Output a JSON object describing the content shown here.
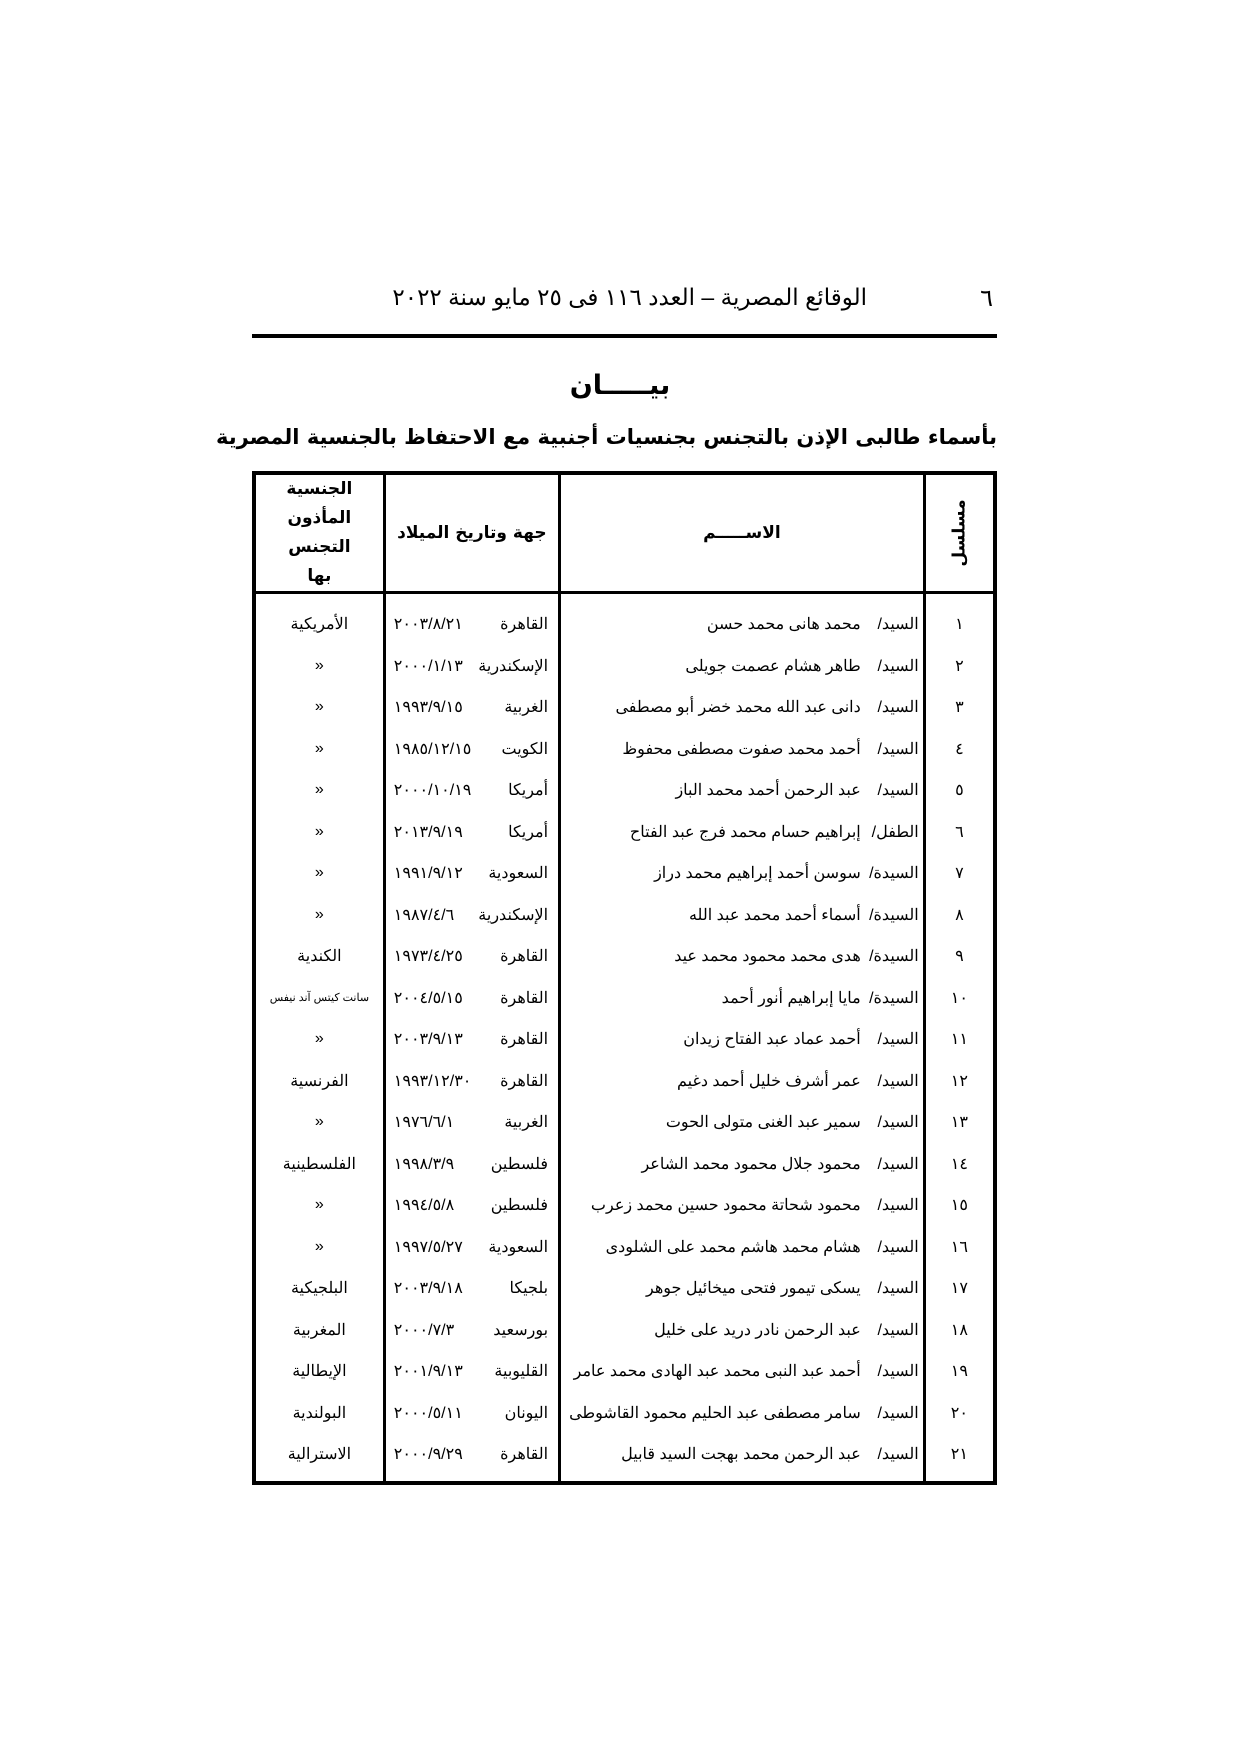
{
  "header": {
    "page_number": "٦",
    "running_title": "الوقائع المصرية – العدد ١١٦ فى ٢٥ مايو سنة ٢٠٢٢"
  },
  "document": {
    "title": "بيـــــان",
    "subtitle": "بأسماء طالبى الإذن بالتجنس بجنسيات أجنبية مع الاحتفاظ بالجنسية المصرية"
  },
  "table": {
    "headers": {
      "serial": "مسلسل",
      "name": "الاســـــم",
      "birth": "جهة وتاريخ الميلاد",
      "nationality": "الجنسية المأذون التجنس بها"
    },
    "rows": [
      {
        "serial": "١",
        "honorific": "السيد/",
        "name": "محمد هانى محمد حسن",
        "place": "القاهرة",
        "date": "٢٠٠٣/٨/٢١",
        "nationality": "الأمريكية"
      },
      {
        "serial": "٢",
        "honorific": "السيد/",
        "name": "طاهر هشام عصمت جويلى",
        "place": "الإسكندرية",
        "date": "٢٠٠٠/١/١٣",
        "nationality": "«"
      },
      {
        "serial": "٣",
        "honorific": "السيد/",
        "name": "دانى عبد الله محمد خضر أبو مصطفى",
        "place": "الغربية",
        "date": "١٩٩٣/٩/١٥",
        "nationality": "«"
      },
      {
        "serial": "٤",
        "honorific": "السيد/",
        "name": "أحمد محمد صفوت مصطفى محفوظ",
        "place": "الكويت",
        "date": "١٩٨٥/١٢/١٥",
        "nationality": "«"
      },
      {
        "serial": "٥",
        "honorific": "السيد/",
        "name": "عبد الرحمن أحمد محمد الباز",
        "place": "أمريكا",
        "date": "٢٠٠٠/١٠/١٩",
        "nationality": "«"
      },
      {
        "serial": "٦",
        "honorific": "الطفل/",
        "name": "إبراهيم حسام محمد فرج عبد الفتاح",
        "place": "أمريكا",
        "date": "٢٠١٣/٩/١٩",
        "nationality": "«"
      },
      {
        "serial": "٧",
        "honorific": "السيدة/",
        "name": "سوسن أحمد إبراهيم محمد دراز",
        "place": "السعودية",
        "date": "١٩٩١/٩/١٢",
        "nationality": "«"
      },
      {
        "serial": "٨",
        "honorific": "السيدة/",
        "name": "أسماء أحمد محمد عبد الله",
        "place": "الإسكندرية",
        "date": "١٩٨٧/٤/٦",
        "nationality": "«"
      },
      {
        "serial": "٩",
        "honorific": "السيدة/",
        "name": "هدى محمد محمود محمد عيد",
        "place": "القاهرة",
        "date": "١٩٧٣/٤/٢٥",
        "nationality": "الكندية"
      },
      {
        "serial": "١٠",
        "honorific": "السيدة/",
        "name": "مايا إبراهيم أنور أحمد",
        "place": "القاهرة",
        "date": "٢٠٠٤/٥/١٥",
        "nationality": "سانت كيتس آند نيفس"
      },
      {
        "serial": "١١",
        "honorific": "السيد/",
        "name": "أحمد عماد عبد الفتاح زيدان",
        "place": "القاهرة",
        "date": "٢٠٠٣/٩/١٣",
        "nationality": "«"
      },
      {
        "serial": "١٢",
        "honorific": "السيد/",
        "name": "عمر أشرف خليل أحمد دغيم",
        "place": "القاهرة",
        "date": "١٩٩٣/١٢/٣٠",
        "nationality": "الفرنسية"
      },
      {
        "serial": "١٣",
        "honorific": "السيد/",
        "name": "سمير عبد الغنى متولى الحوت",
        "place": "الغربية",
        "date": "١٩٧٦/٦/١",
        "nationality": "«"
      },
      {
        "serial": "١٤",
        "honorific": "السيد/",
        "name": "محمود جلال محمود محمد الشاعر",
        "place": "فلسطين",
        "date": "١٩٩٨/٣/٩",
        "nationality": "الفلسطينية"
      },
      {
        "serial": "١٥",
        "honorific": "السيد/",
        "name": "محمود شحاتة محمود حسين محمد زعرب",
        "place": "فلسطين",
        "date": "١٩٩٤/٥/٨",
        "nationality": "«"
      },
      {
        "serial": "١٦",
        "honorific": "السيد/",
        "name": "هشام محمد هاشم محمد على الشلودى",
        "place": "السعودية",
        "date": "١٩٩٧/٥/٢٧",
        "nationality": "«"
      },
      {
        "serial": "١٧",
        "honorific": "السيد/",
        "name": "يسكى تيمور فتحى ميخائيل جوهر",
        "place": "بلجيكا",
        "date": "٢٠٠٣/٩/١٨",
        "nationality": "البلجيكية"
      },
      {
        "serial": "١٨",
        "honorific": "السيد/",
        "name": "عبد الرحمن نادر دريد على خليل",
        "place": "بورسعيد",
        "date": "٢٠٠٠/٧/٣",
        "nationality": "المغربية"
      },
      {
        "serial": "١٩",
        "honorific": "السيد/",
        "name": "أحمد عبد النبى محمد عبد الهادى محمد عامر",
        "place": "القليوبية",
        "date": "٢٠٠١/٩/١٣",
        "nationality": "الإيطالية"
      },
      {
        "serial": "٢٠",
        "honorific": "السيد/",
        "name": "سامر مصطفى عبد الحليم محمود القاشوطى",
        "place": "اليونان",
        "date": "٢٠٠٠/٥/١١",
        "nationality": "البولندية"
      },
      {
        "serial": "٢١",
        "honorific": "السيد/",
        "name": "عبد الرحمن محمد بهجت السيد قابيل",
        "place": "القاهرة",
        "date": "٢٠٠٠/٩/٢٩",
        "nationality": "الاسترالية"
      }
    ]
  }
}
